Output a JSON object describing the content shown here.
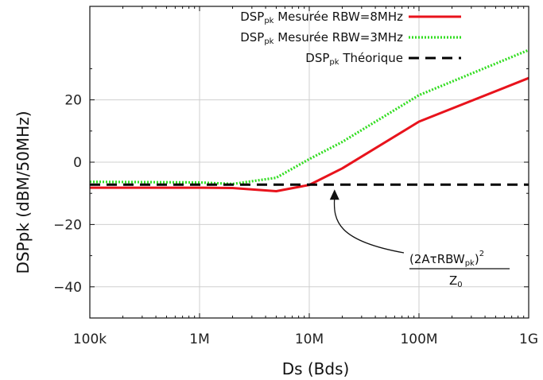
{
  "chart_data": {
    "type": "line",
    "xlabel": "Ds (Bds)",
    "ylabel": "DSPpk (dBM/50MHz)",
    "x_scale": "log",
    "xlim": [
      100000,
      1000000000
    ],
    "ylim": [
      -50,
      50
    ],
    "xticks": [
      {
        "value": 100000,
        "label": "100k"
      },
      {
        "value": 1000000,
        "label": "1M"
      },
      {
        "value": 10000000,
        "label": "10M"
      },
      {
        "value": 100000000,
        "label": "100M"
      },
      {
        "value": 1000000000,
        "label": "1G"
      }
    ],
    "yticks": [
      {
        "value": 20,
        "label": "20"
      },
      {
        "value": 0,
        "label": "0"
      },
      {
        "value": -20,
        "label": "−20"
      },
      {
        "value": -40,
        "label": "−40"
      }
    ],
    "grid": true,
    "legend_position": "top-right",
    "series": [
      {
        "name_main": "DSP",
        "name_sub": "pk",
        "name_rest": " Mesurée RBW=8MHz",
        "color": "#e8131c",
        "style": "solid",
        "points": [
          [
            100000,
            -8.2
          ],
          [
            1000000,
            -8.2
          ],
          [
            2000000,
            -8.3
          ],
          [
            5000000,
            -9.3
          ],
          [
            10000000,
            -7.3
          ],
          [
            20000000,
            -2.0
          ],
          [
            100000000,
            13.0
          ],
          [
            1000000000,
            27.0
          ]
        ]
      },
      {
        "name_main": "DSP",
        "name_sub": "pk",
        "name_rest": " Mesurée RBW=3MHz",
        "color": "#33dd22",
        "style": "dotted",
        "points": [
          [
            100000,
            -6.3
          ],
          [
            1000000,
            -6.5
          ],
          [
            2000000,
            -7.0
          ],
          [
            5000000,
            -5.0
          ],
          [
            10000000,
            1.0
          ],
          [
            20000000,
            6.5
          ],
          [
            100000000,
            21.5
          ],
          [
            1000000000,
            36.0
          ]
        ]
      },
      {
        "name_main": "DSP",
        "name_sub": "pk",
        "name_rest": " Théorique",
        "color": "#000000",
        "style": "dashed",
        "points": [
          [
            100000,
            -7.2
          ],
          [
            1000000000,
            -7.2
          ]
        ]
      }
    ],
    "annotation": {
      "numerator_main": "(2AτRBW",
      "numerator_sub": "pk",
      "numerator_close": ")",
      "numerator_sup": "2",
      "denominator_main": "Z",
      "denominator_sub": "0",
      "arrow_target": [
        17000000,
        -7.2
      ]
    }
  }
}
